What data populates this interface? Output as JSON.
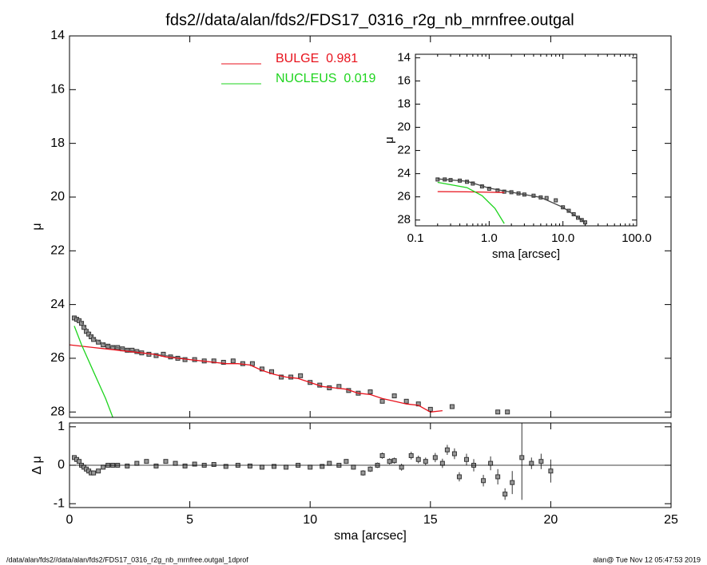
{
  "title": "fds2//data/alan/fds2/FDS17_0316_r2g_nb_mrnfree.outgal",
  "footer_left": "/data/alan/fds2//data/alan/fds2/FDS17_0316_r2g_nb_mrnfree.outgal_1dprof",
  "footer_right": "alan@  Tue Nov 12 05:47:53 2019",
  "chart_data": [
    {
      "type": "line",
      "ylabel": "μ",
      "xlim": [
        0,
        25
      ],
      "ylim": [
        28.2,
        14
      ],
      "xticks": [
        0,
        5,
        10,
        15,
        20,
        25
      ],
      "yticks": [
        14,
        16,
        18,
        20,
        22,
        24,
        26,
        28
      ],
      "xtick_labels": false,
      "legend": "upper-center",
      "series": [
        {
          "style": "points",
          "color": "#999999",
          "x": [
            0.2,
            0.3,
            0.4,
            0.5,
            0.6,
            0.7,
            0.8,
            0.9,
            1.0,
            1.2,
            1.4,
            1.6,
            1.8,
            2.0,
            2.2,
            2.4,
            2.6,
            2.8,
            3.0,
            3.3,
            3.6,
            3.9,
            4.2,
            4.5,
            4.8,
            5.2,
            5.6,
            6.0,
            6.4,
            6.8,
            7.2,
            7.6,
            8.0,
            8.4,
            8.8,
            9.2,
            9.6,
            10.0,
            10.4,
            10.8,
            11.2,
            11.6,
            12.0,
            12.5,
            13.0,
            13.5,
            14.0,
            14.5,
            15.0,
            15.9,
            17.8,
            18.2
          ],
          "values": [
            24.5,
            24.55,
            24.6,
            24.7,
            24.85,
            25.0,
            25.1,
            25.2,
            25.3,
            25.4,
            25.5,
            25.55,
            25.6,
            25.6,
            25.65,
            25.7,
            25.7,
            25.75,
            25.8,
            25.85,
            25.9,
            25.85,
            25.95,
            26.0,
            26.05,
            26.05,
            26.1,
            26.1,
            26.15,
            26.1,
            26.2,
            26.2,
            26.4,
            26.5,
            26.7,
            26.7,
            26.65,
            26.9,
            27.0,
            27.1,
            27.05,
            27.2,
            27.3,
            27.25,
            27.6,
            27.4,
            27.6,
            27.7,
            27.9,
            27.8,
            28.0,
            28.0
          ]
        },
        {
          "style": "line",
          "color": "#666666",
          "x": [
            0.2,
            0.5,
            1.0,
            1.5,
            2.0,
            3.0,
            4.0,
            5.0
          ],
          "values": [
            24.45,
            24.65,
            25.25,
            25.5,
            25.6,
            25.8,
            25.9,
            26.05
          ]
        },
        {
          "style": "line",
          "name": "BULGE  0.981",
          "color": "#e8121c",
          "x": [
            0,
            1,
            2,
            3,
            3.5,
            4,
            4.5,
            5,
            5.5,
            6,
            6.5,
            7,
            7.5,
            8,
            8.5,
            9,
            9.5,
            10,
            10.5,
            11,
            11.5,
            12,
            12.5,
            13,
            13.5,
            14,
            14.5,
            15,
            15.5
          ],
          "values": [
            25.5,
            25.6,
            25.7,
            25.8,
            25.85,
            25.95,
            26.0,
            26.05,
            26.1,
            26.15,
            26.2,
            26.2,
            26.25,
            26.45,
            26.6,
            26.7,
            26.75,
            26.9,
            27.05,
            27.1,
            27.15,
            27.3,
            27.35,
            27.5,
            27.6,
            27.7,
            27.75,
            28.0,
            27.95
          ]
        },
        {
          "style": "line",
          "name": "NUCLEUS  0.019",
          "color": "#1ed41e",
          "x": [
            0.2,
            0.5,
            1.0,
            1.5,
            1.8
          ],
          "values": [
            24.8,
            25.5,
            26.5,
            27.5,
            28.2
          ]
        }
      ]
    },
    {
      "type": "scatter",
      "xlabel": "sma [arcsec]",
      "ylabel": "Δ μ",
      "xlim": [
        0,
        25
      ],
      "ylim": [
        -1.1,
        1.1
      ],
      "xticks": [
        0,
        5,
        10,
        15,
        20,
        25
      ],
      "yticks": [
        -1,
        0,
        1
      ],
      "xtick_labels": true,
      "zero_line": true,
      "series": [
        {
          "style": "points",
          "color": "#999999",
          "x": [
            0.2,
            0.3,
            0.4,
            0.5,
            0.6,
            0.7,
            0.8,
            0.9,
            1.0,
            1.2,
            1.4,
            1.6,
            1.8,
            2.0,
            2.4,
            2.8,
            3.2,
            3.6,
            4.0,
            4.4,
            4.8,
            5.2,
            5.6,
            6.0,
            6.5,
            7.0,
            7.5,
            8.0,
            8.5,
            9.0,
            9.5,
            10.0,
            10.5,
            10.8,
            11.2,
            11.5,
            11.8,
            12.2,
            12.5,
            12.8,
            13.0,
            13.3,
            13.5,
            13.8,
            14.2,
            14.5,
            14.8,
            15.2,
            15.5,
            15.7,
            16.0,
            16.2,
            16.5,
            16.8,
            17.2,
            17.5,
            17.8,
            18.1,
            18.4,
            18.8,
            19.2,
            19.6,
            20.0
          ],
          "values": [
            0.2,
            0.15,
            0.1,
            0.0,
            -0.05,
            -0.1,
            -0.15,
            -0.2,
            -0.2,
            -0.15,
            -0.05,
            0.0,
            0.0,
            0.0,
            -0.02,
            0.05,
            0.1,
            -0.02,
            0.1,
            0.05,
            -0.02,
            0.03,
            0.0,
            0.02,
            -0.03,
            0.0,
            -0.02,
            -0.05,
            -0.03,
            -0.05,
            0.0,
            -0.05,
            -0.03,
            0.05,
            0.0,
            0.1,
            -0.05,
            -0.2,
            -0.1,
            0.0,
            0.25,
            0.1,
            0.12,
            -0.05,
            0.25,
            0.15,
            0.1,
            0.2,
            0.05,
            0.4,
            0.3,
            -0.3,
            0.15,
            0.0,
            -0.4,
            0.05,
            -0.3,
            -0.75,
            -0.45,
            0.2,
            0.05,
            0.1,
            -0.15
          ],
          "errors": [
            0.02,
            0.02,
            0.02,
            0.02,
            0.02,
            0.02,
            0.02,
            0.02,
            0.02,
            0.02,
            0.02,
            0.02,
            0.02,
            0.02,
            0.02,
            0.02,
            0.03,
            0.03,
            0.03,
            0.03,
            0.03,
            0.03,
            0.03,
            0.03,
            0.03,
            0.03,
            0.03,
            0.03,
            0.04,
            0.04,
            0.04,
            0.04,
            0.05,
            0.05,
            0.05,
            0.06,
            0.06,
            0.07,
            0.07,
            0.07,
            0.08,
            0.08,
            0.08,
            0.09,
            0.1,
            0.1,
            0.1,
            0.12,
            0.12,
            0.13,
            0.14,
            0.12,
            0.15,
            0.16,
            0.15,
            0.18,
            0.2,
            0.15,
            0.3,
            1.1,
            0.15,
            0.2,
            0.3
          ]
        }
      ]
    },
    {
      "type": "line",
      "xlabel": "sma [arcsec]",
      "ylabel": "μ",
      "xscale": "log",
      "xlim": [
        0.1,
        100
      ],
      "ylim": [
        28.5,
        13.7
      ],
      "xticks": [
        0.1,
        {
          "value": 1,
          "label": "1.0"
        },
        {
          "value": 10,
          "label": "10.0"
        },
        {
          "value": 100,
          "label": "100.0"
        }
      ],
      "yticks": [
        14,
        16,
        18,
        20,
        22,
        24,
        26,
        28
      ],
      "xtick_labels": true,
      "series": [
        {
          "style": "points",
          "color": "#999999",
          "x": [
            0.2,
            0.25,
            0.3,
            0.4,
            0.5,
            0.6,
            0.8,
            1.0,
            1.3,
            1.6,
            2,
            2.5,
            3,
            4,
            5,
            6,
            8,
            10,
            12,
            14,
            16,
            18,
            20
          ],
          "values": [
            24.5,
            24.5,
            24.55,
            24.6,
            24.7,
            24.85,
            25.1,
            25.3,
            25.45,
            25.55,
            25.6,
            25.7,
            25.8,
            25.9,
            26.05,
            26.1,
            26.3,
            26.9,
            27.2,
            27.5,
            27.8,
            28.0,
            28.2
          ]
        },
        {
          "style": "line",
          "color": "#444444",
          "x": [
            0.2,
            0.5,
            1.0,
            2.0,
            5.0,
            10.0,
            20.0
          ],
          "values": [
            24.45,
            24.65,
            25.25,
            25.6,
            26.05,
            26.9,
            28.2
          ]
        },
        {
          "style": "line",
          "color": "#e8121c",
          "x": [
            0.2,
            0.5,
            1.0,
            1.6
          ],
          "values": [
            25.55,
            25.57,
            25.6,
            25.62
          ]
        },
        {
          "style": "line",
          "color": "#1ed41e",
          "x": [
            0.2,
            0.5,
            0.8,
            1.2,
            1.6
          ],
          "values": [
            24.75,
            25.2,
            25.9,
            27.0,
            28.3
          ]
        }
      ]
    }
  ]
}
